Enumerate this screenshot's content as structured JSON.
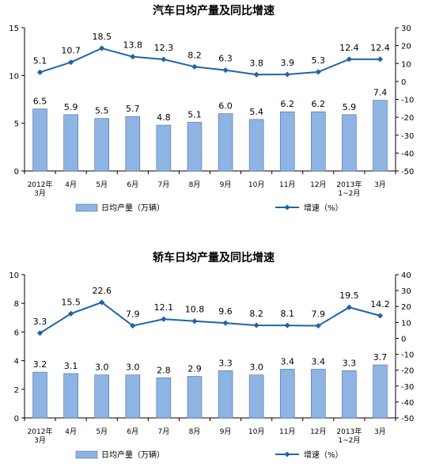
{
  "colors": {
    "bar_fill": "#8db4e2",
    "bar_stroke": "#4f6f9f",
    "line": "#1f64a8",
    "marker": "#1f64a8",
    "axis": "#000000"
  },
  "chart_data": [
    {
      "type": "bar",
      "title": "汽车日均产量及同比增速",
      "categories": [
        [
          "2012年",
          "3月"
        ],
        [
          "4月"
        ],
        [
          "5月"
        ],
        [
          "6月"
        ],
        [
          "7月"
        ],
        [
          "8月"
        ],
        [
          "9月"
        ],
        [
          "10月"
        ],
        [
          "11月"
        ],
        [
          "12月"
        ],
        [
          "2013年",
          "1~2月"
        ],
        [
          "3月"
        ]
      ],
      "series": [
        {
          "name": "日均产量（万辆）",
          "type": "bar",
          "axis": "left",
          "values": [
            6.5,
            5.9,
            5.5,
            5.7,
            4.8,
            5.1,
            6.0,
            5.4,
            6.2,
            6.2,
            5.9,
            7.4
          ],
          "labels": [
            "6.5",
            "5.9",
            "5.5",
            "5.7",
            "4.8",
            "5.1",
            "6.0",
            "5.4",
            "6.2",
            "6.2",
            "5.9",
            "7.4"
          ]
        },
        {
          "name": "增速（%）",
          "type": "line",
          "axis": "right",
          "values": [
            5.1,
            10.7,
            18.5,
            13.8,
            12.3,
            8.2,
            6.3,
            3.8,
            3.9,
            5.3,
            12.4,
            12.4
          ],
          "labels": [
            "5.1",
            "10.7",
            "18.5",
            "13.8",
            "12.3",
            "8.2",
            "6.3",
            "3.8",
            "3.9",
            "5.3",
            "12.4",
            "12.4"
          ]
        }
      ],
      "y_left": {
        "min": 0,
        "max": 15,
        "ticks": [
          "0",
          "5",
          "10",
          "15"
        ]
      },
      "y_right": {
        "min": -50,
        "max": 30,
        "ticks": [
          "30",
          "20",
          "10",
          "0",
          "-10",
          "-20",
          "-30",
          "-40",
          "-50"
        ]
      },
      "legend_placement": "bottom"
    },
    {
      "type": "bar",
      "title": "轿车日均产量及同比增速",
      "categories": [
        [
          "2012年",
          "3月"
        ],
        [
          "4月"
        ],
        [
          "5月"
        ],
        [
          "6月"
        ],
        [
          "7月"
        ],
        [
          "8月"
        ],
        [
          "9月"
        ],
        [
          "10月"
        ],
        [
          "11月"
        ],
        [
          "12月"
        ],
        [
          "2013年",
          "1~2月"
        ],
        [
          "3月"
        ]
      ],
      "series": [
        {
          "name": "日均产量（万辆）",
          "type": "bar",
          "axis": "left",
          "values": [
            3.2,
            3.1,
            3.0,
            3.0,
            2.8,
            2.9,
            3.3,
            3.0,
            3.4,
            3.4,
            3.3,
            3.7
          ],
          "labels": [
            "3.2",
            "3.1",
            "3.0",
            "3.0",
            "2.8",
            "2.9",
            "3.3",
            "3.0",
            "3.4",
            "3.4",
            "3.3",
            "3.7"
          ]
        },
        {
          "name": "增速（%）",
          "type": "line",
          "axis": "right",
          "values": [
            3.3,
            15.5,
            22.6,
            7.9,
            12.1,
            10.8,
            9.6,
            8.2,
            8.1,
            7.9,
            19.5,
            14.2
          ],
          "labels": [
            "3.3",
            "15.5",
            "22.6",
            "7.9",
            "12.1",
            "10.8",
            "9.6",
            "8.2",
            "8.1",
            "7.9",
            "19.5",
            "14.2"
          ]
        }
      ],
      "y_left": {
        "min": 0,
        "max": 10,
        "ticks": [
          "0",
          "2",
          "4",
          "6",
          "8",
          "10"
        ]
      },
      "y_right": {
        "min": -50,
        "max": 40,
        "ticks": [
          "40",
          "30",
          "20",
          "10",
          "0",
          "-10",
          "-20",
          "-30",
          "-40",
          "-50"
        ]
      },
      "legend_placement": "bottom"
    }
  ]
}
